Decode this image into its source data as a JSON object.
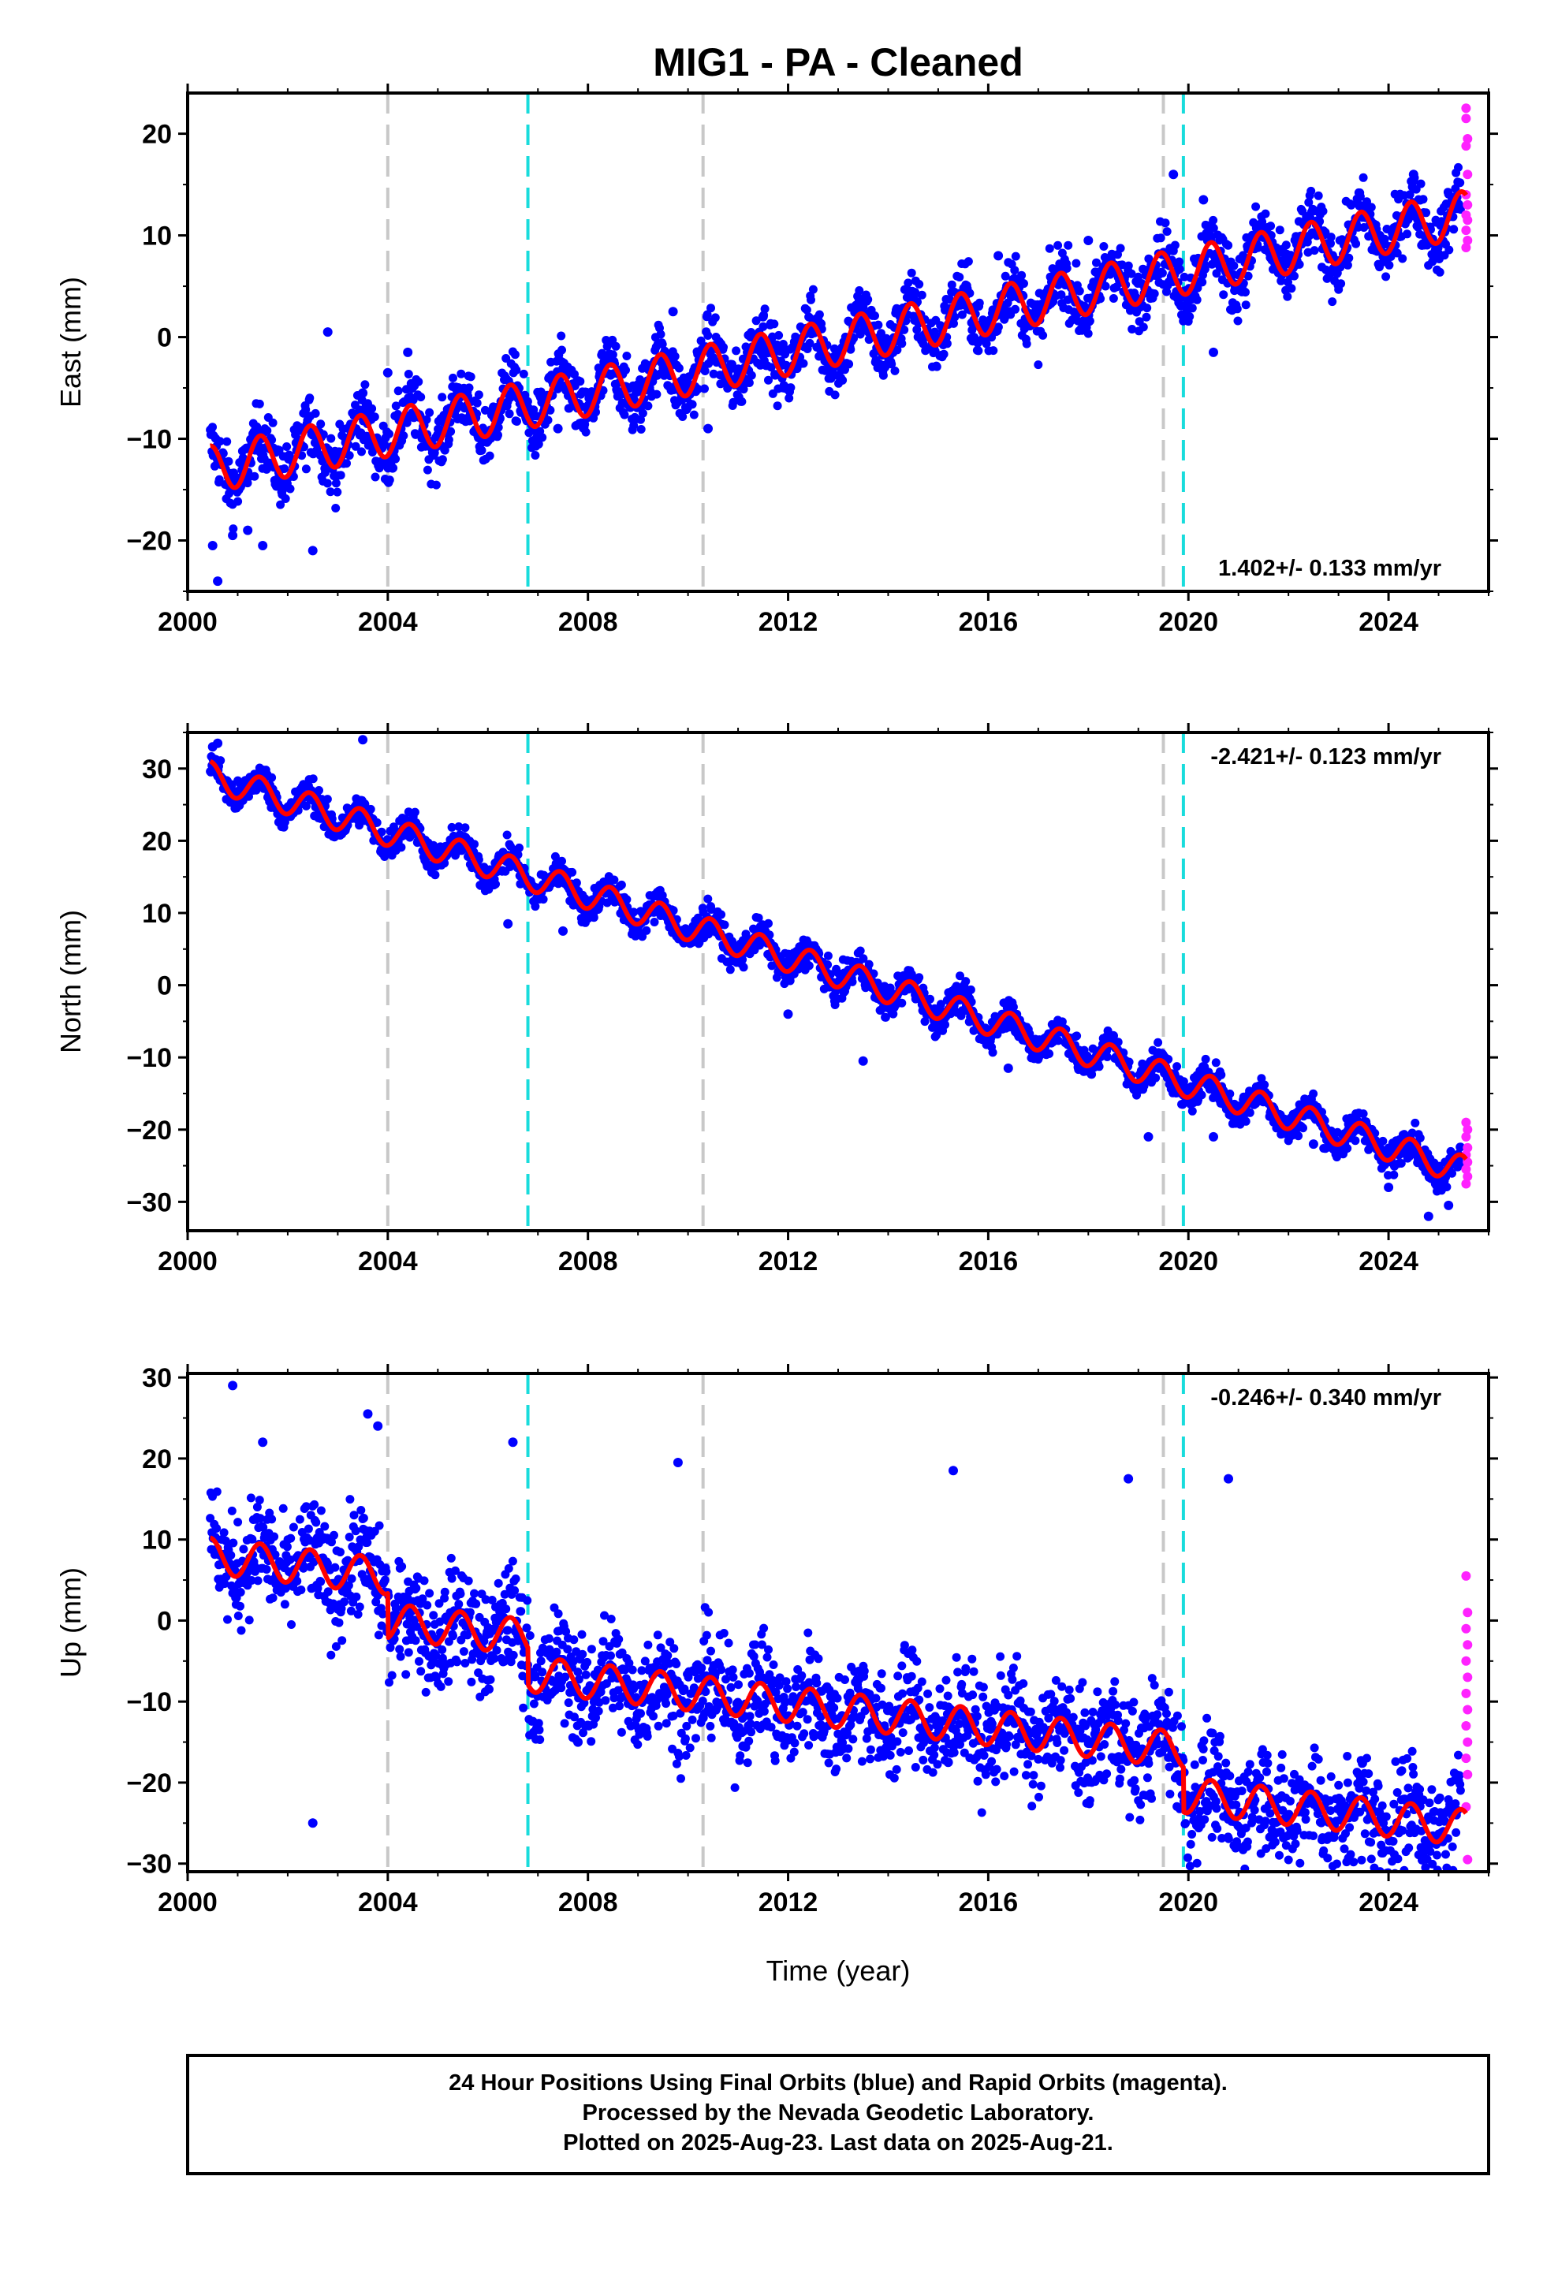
{
  "chart_data": {
    "type": "scatter",
    "title": "MIG1  - PA - Cleaned",
    "xlabel": "Time (year)",
    "xlim": [
      2000,
      2026
    ],
    "x_ticks": [
      2000,
      2004,
      2008,
      2012,
      2016,
      2020,
      2024
    ],
    "x_tick_labels": [
      "2000",
      "2004",
      "2008",
      "2012",
      "2016",
      "2020",
      "2024"
    ],
    "vertical_lines": [
      {
        "x": 2004.0,
        "color": "#c8c8c8"
      },
      {
        "x": 2006.8,
        "color": "#18dcdc"
      },
      {
        "x": 2010.3,
        "color": "#c8c8c8"
      },
      {
        "x": 2019.5,
        "color": "#c8c8c8"
      },
      {
        "x": 2019.9,
        "color": "#18dcdc"
      }
    ],
    "colors": {
      "final_orbits": "#0000ff",
      "rapid_orbits": "#ff22ff",
      "model_fit": "#ff0000"
    },
    "panels": [
      {
        "component": "East",
        "ylabel": "East (mm)",
        "ylim": [
          -25,
          24
        ],
        "y_ticks": [
          -20,
          -10,
          0,
          10,
          20
        ],
        "y_tick_labels": [
          "−20",
          "−10",
          "0",
          "10",
          "20"
        ],
        "rate_text": "1.402+/- 0.133 mm/yr",
        "rate_position": "bottom-right",
        "trend": {
          "y_start": -13.0,
          "y_end": 12.0
        },
        "annual_amplitude": 2.3,
        "scatter_half_width": 2.8,
        "offsets": [],
        "series": [
          {
            "name": "Final Orbits (blue)",
            "color": "#0000ff",
            "x_range": [
              2000.45,
              2025.45
            ],
            "points": [
              [
                2000.5,
                -20.5
              ],
              [
                2000.6,
                -24.0
              ],
              [
                2000.9,
                -19.5
              ],
              [
                2001.2,
                -19.0
              ],
              [
                2001.5,
                -20.5
              ],
              [
                2002.5,
                -21.0
              ],
              [
                2002.8,
                0.5
              ],
              [
                2003.5,
                -5.5
              ],
              [
                2004.0,
                -3.5
              ],
              [
                2004.4,
                -1.5
              ],
              [
                2007.4,
                -9.0
              ],
              [
                2009.7,
                2.5
              ],
              [
                2010.4,
                -9.0
              ],
              [
                2011.5,
                2.0
              ],
              [
                2016.2,
                8.0
              ],
              [
                2018.0,
                9.5
              ],
              [
                2019.7,
                16.0
              ],
              [
                2020.3,
                13.5
              ],
              [
                2020.5,
                -1.5
              ],
              [
                2024.5,
                16.0
              ]
            ]
          },
          {
            "name": "Rapid Orbits (magenta)",
            "color": "#ff22ff",
            "x_range": [
              2025.5,
              2025.6
            ],
            "points": [
              [
                2025.55,
                22.5
              ],
              [
                2025.55,
                21.5
              ],
              [
                2025.58,
                19.5
              ],
              [
                2025.55,
                18.8
              ],
              [
                2025.58,
                16.0
              ],
              [
                2025.55,
                14.0
              ],
              [
                2025.58,
                13.0
              ],
              [
                2025.55,
                12.0
              ],
              [
                2025.58,
                11.5
              ],
              [
                2025.55,
                10.5
              ],
              [
                2025.58,
                9.5
              ],
              [
                2025.55,
                8.8
              ]
            ]
          }
        ]
      },
      {
        "component": "North",
        "ylabel": "North (mm)",
        "ylim": [
          -34,
          35
        ],
        "y_ticks": [
          -30,
          -20,
          -10,
          0,
          10,
          20,
          30
        ],
        "y_tick_labels": [
          "−30",
          "−20",
          "−10",
          "0",
          "10",
          "20",
          "30"
        ],
        "rate_text": "-2.421+/- 0.123 mm/yr",
        "rate_position": "top-right",
        "trend": {
          "y_start": 29.0,
          "y_end": -25.5
        },
        "annual_amplitude": 2.0,
        "scatter_half_width": 2.0,
        "offsets": [],
        "series": [
          {
            "name": "Final Orbits (blue)",
            "color": "#0000ff",
            "x_range": [
              2000.45,
              2025.45
            ],
            "points": [
              [
                2000.5,
                33.0
              ],
              [
                2000.6,
                33.5
              ],
              [
                2003.5,
                34.0
              ],
              [
                2006.4,
                8.5
              ],
              [
                2007.5,
                7.5
              ],
              [
                2012.0,
                -4.0
              ],
              [
                2013.5,
                -10.5
              ],
              [
                2016.4,
                -11.5
              ],
              [
                2018.5,
                -7.0
              ],
              [
                2019.2,
                -21.0
              ],
              [
                2020.5,
                -21.0
              ],
              [
                2022.5,
                -22.0
              ],
              [
                2024.0,
                -28.0
              ],
              [
                2024.8,
                -32.0
              ],
              [
                2025.2,
                -30.5
              ]
            ]
          },
          {
            "name": "Rapid Orbits (magenta)",
            "color": "#ff22ff",
            "x_range": [
              2025.5,
              2025.6
            ],
            "points": [
              [
                2025.55,
                -19.0
              ],
              [
                2025.58,
                -20.0
              ],
              [
                2025.55,
                -21.0
              ],
              [
                2025.58,
                -22.5
              ],
              [
                2025.55,
                -23.5
              ],
              [
                2025.58,
                -24.5
              ],
              [
                2025.55,
                -25.5
              ],
              [
                2025.58,
                -26.5
              ],
              [
                2025.55,
                -27.5
              ]
            ]
          }
        ]
      },
      {
        "component": "Up",
        "ylabel": "Up (mm)",
        "ylim": [
          -31,
          30.5
        ],
        "y_ticks": [
          -30,
          -20,
          -10,
          0,
          10,
          20,
          30
        ],
        "y_tick_labels": [
          "−30",
          "−20",
          "−10",
          "0",
          "10",
          "20",
          "30"
        ],
        "rate_text": "-0.246+/- 0.340 mm/yr",
        "rate_position": "top-right",
        "trend": {
          "y_start": 8.0,
          "y_end": -10.0
        },
        "annual_amplitude": 2.2,
        "scatter_half_width": 6.0,
        "offsets": [
          {
            "x": 2004.0,
            "delta": -5.5
          },
          {
            "x": 2006.8,
            "delta": -4.5
          },
          {
            "x": 2019.9,
            "delta": -5.5
          }
        ],
        "series": [
          {
            "name": "Final Orbits (blue)",
            "color": "#0000ff",
            "x_range": [
              2000.45,
              2025.45
            ],
            "points": [
              [
                2000.9,
                29.0
              ],
              [
                2001.5,
                22.0
              ],
              [
                2002.5,
                -25.0
              ],
              [
                2003.6,
                25.5
              ],
              [
                2003.8,
                24.0
              ],
              [
                2006.5,
                22.0
              ],
              [
                2007.8,
                -15.0
              ],
              [
                2009.8,
                19.5
              ],
              [
                2010.3,
                -12.0
              ],
              [
                2011.1,
                -15.5
              ],
              [
                2015.2,
                -17.5
              ],
              [
                2015.3,
                18.5
              ],
              [
                2018.0,
                -16.5
              ],
              [
                2018.8,
                17.5
              ],
              [
                2020.8,
                17.5
              ],
              [
                2020.8,
                -24.5
              ],
              [
                2021.8,
                -22.0
              ],
              [
                2023.2,
                -29.5
              ],
              [
                2023.2,
                -23.5
              ],
              [
                2024.6,
                -21.5
              ]
            ]
          },
          {
            "name": "Rapid Orbits (magenta)",
            "color": "#ff22ff",
            "x_range": [
              2025.5,
              2025.6
            ],
            "points": [
              [
                2025.55,
                5.5
              ],
              [
                2025.58,
                1.0
              ],
              [
                2025.55,
                -1.0
              ],
              [
                2025.58,
                -3.0
              ],
              [
                2025.55,
                -5.0
              ],
              [
                2025.58,
                -7.0
              ],
              [
                2025.55,
                -9.0
              ],
              [
                2025.58,
                -11.0
              ],
              [
                2025.55,
                -13.0
              ],
              [
                2025.58,
                -15.0
              ],
              [
                2025.55,
                -17.0
              ],
              [
                2025.58,
                -19.0
              ],
              [
                2025.55,
                -23.0
              ],
              [
                2025.58,
                -29.5
              ]
            ]
          }
        ]
      }
    ]
  },
  "footer": {
    "lines": [
      "24 Hour Positions Using Final Orbits (blue) and Rapid Orbits (magenta).",
      "Processed by the Nevada Geodetic Laboratory.",
      "Plotted on 2025-Aug-23. Last data on 2025-Aug-21."
    ]
  }
}
